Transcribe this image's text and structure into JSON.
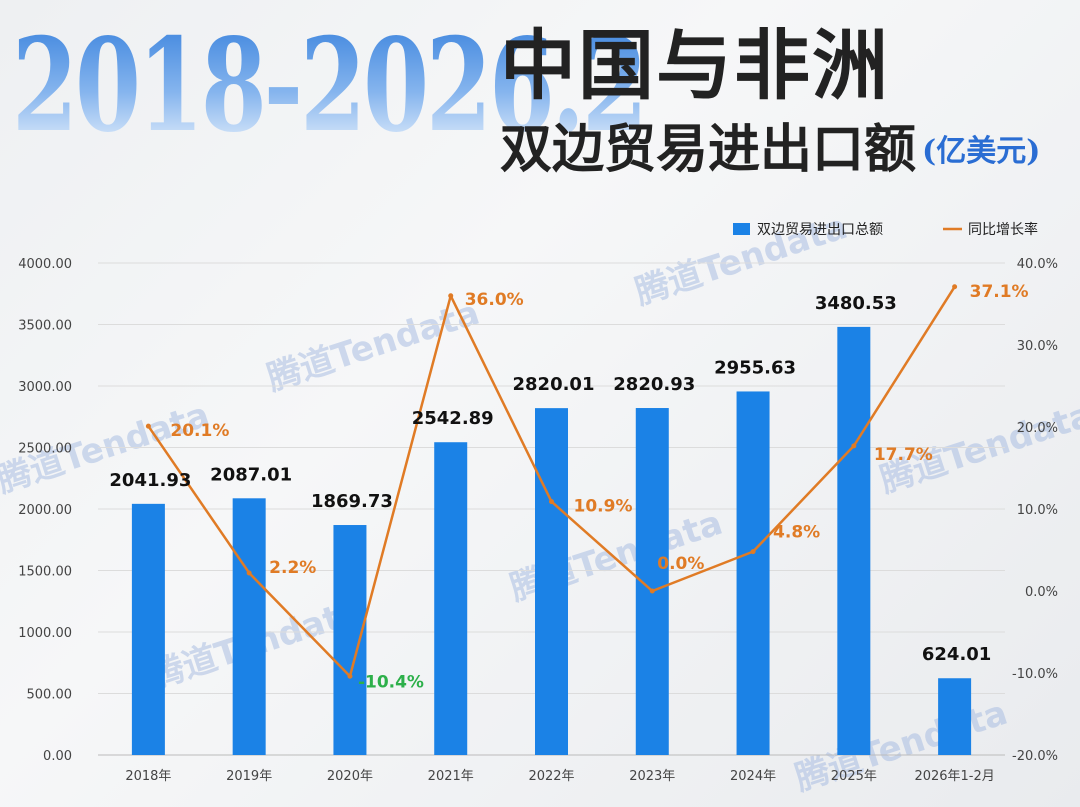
{
  "header": {
    "hero": "2018-2026.2",
    "title_line1": "中国与非洲",
    "title_line2": "双边贸易进出口额",
    "unit": "(亿美元)"
  },
  "watermark": "腾道Tendata",
  "colors": {
    "bar": "#1b82e6",
    "line": "#e07b25",
    "negative_label": "#2db04a",
    "grid": "#dcdcdc"
  },
  "chart_data": {
    "type": "bar+line",
    "categories": [
      "2018年",
      "2019年",
      "2020年",
      "2021年",
      "2022年",
      "2023年",
      "2024年",
      "2025年",
      "2026年1-2月"
    ],
    "series": [
      {
        "name": "双边贸易进出口总额",
        "type": "bar",
        "axis": "left",
        "values": [
          2041.93,
          2087.01,
          1869.73,
          2542.89,
          2820.01,
          2820.93,
          2955.63,
          3480.53,
          624.01
        ],
        "labels": [
          "2041.93",
          "2087.01",
          "1869.73",
          "2542.89",
          "2820.01",
          "2820.93",
          "2955.63",
          "3480.53",
          "624.01"
        ]
      },
      {
        "name": "同比增长率",
        "type": "line",
        "axis": "right",
        "values": [
          20.1,
          2.2,
          -10.4,
          36.0,
          10.9,
          0.0,
          4.8,
          17.7,
          37.1
        ],
        "labels": [
          "20.1%",
          "2.2%",
          "-10.4%",
          "36.0%",
          "10.9%",
          "0.0%",
          "4.8%",
          "17.7%",
          "37.1%"
        ]
      }
    ],
    "y_left": {
      "min": 0,
      "max": 4000,
      "ticks": [
        "0.00",
        "500.00",
        "1000.00",
        "1500.00",
        "2000.00",
        "2500.00",
        "3000.00",
        "3500.00",
        "4000.00"
      ]
    },
    "y_right": {
      "min": -20,
      "max": 40,
      "ticks": [
        "-20.0%",
        "-10.0%",
        "0.0%",
        "10.0%",
        "20.0%",
        "30.0%",
        "40.0%"
      ]
    },
    "grid": true,
    "legend": "top-right"
  }
}
